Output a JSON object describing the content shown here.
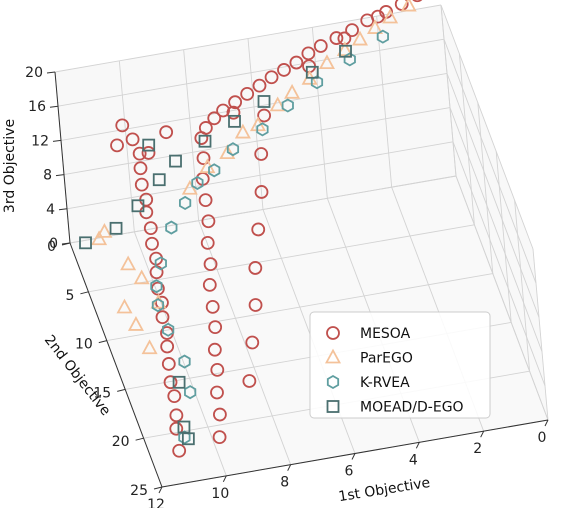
{
  "chart_data": {
    "type": "scatter",
    "title": "",
    "axes": {
      "x": {
        "label": "1st Objective",
        "ticks": [
          0,
          2,
          4,
          6,
          8,
          10,
          12
        ]
      },
      "y": {
        "label": "2nd Objective",
        "ticks": [
          0,
          5,
          10,
          15,
          20,
          25
        ]
      },
      "z": {
        "label": "3rd Objective",
        "ticks": [
          0,
          4,
          8,
          12,
          16,
          20
        ]
      }
    },
    "grid": true,
    "legend_position": "lower-right",
    "series": [
      {
        "name": "MESOA",
        "marker": "circle",
        "color": "#c0504d",
        "points": [
          [
            11.1,
            21.8,
            0
          ],
          [
            11.0,
            20.3,
            0.8
          ],
          [
            10.9,
            19.6,
            1.5
          ],
          [
            10.8,
            18.3,
            2.2
          ],
          [
            10.8,
            17.4,
            2.8
          ],
          [
            10.7,
            16.2,
            3.5
          ],
          [
            10.6,
            15.0,
            4.1
          ],
          [
            10.5,
            14.2,
            4.7
          ],
          [
            10.5,
            13.1,
            5.3
          ],
          [
            10.4,
            12.2,
            5.9
          ],
          [
            10.4,
            11.2,
            6.4
          ],
          [
            10.3,
            10.1,
            7.0
          ],
          [
            10.2,
            9.2,
            7.5
          ],
          [
            10.2,
            8.2,
            8.1
          ],
          [
            10.1,
            7.1,
            8.6
          ],
          [
            10.1,
            6.0,
            9.2
          ],
          [
            10.0,
            5.2,
            9.7
          ],
          [
            10.0,
            4.1,
            10.2
          ],
          [
            9.9,
            3.0,
            10.8
          ],
          [
            9.8,
            2.0,
            11.3
          ],
          [
            9.9,
            1.1,
            12.0
          ],
          [
            9.8,
            21.5,
            0.4
          ],
          [
            9.6,
            20.0,
            1.2
          ],
          [
            9.5,
            18.5,
            2.0
          ],
          [
            9.3,
            17.0,
            2.8
          ],
          [
            9.2,
            15.6,
            3.5
          ],
          [
            9.0,
            14.1,
            4.3
          ],
          [
            8.9,
            12.7,
            5.0
          ],
          [
            8.8,
            11.2,
            5.8
          ],
          [
            8.6,
            9.8,
            6.5
          ],
          [
            8.5,
            8.3,
            7.2
          ],
          [
            8.3,
            6.9,
            8.0
          ],
          [
            8.2,
            5.4,
            8.7
          ],
          [
            8.1,
            3.9,
            9.4
          ],
          [
            7.9,
            2.5,
            10.1
          ],
          [
            7.8,
            1.2,
            10.9
          ],
          [
            7.6,
            0.8,
            11.5
          ],
          [
            7.3,
            0.6,
            12.2
          ],
          [
            7.0,
            0.5,
            12.8
          ],
          [
            6.6,
            0.4,
            13.4
          ],
          [
            6.2,
            0.3,
            14.0
          ],
          [
            5.8,
            0.3,
            14.7
          ],
          [
            5.4,
            0.2,
            15.3
          ],
          [
            5.0,
            0.2,
            15.9
          ],
          [
            4.6,
            0.2,
            16.5
          ],
          [
            4.2,
            0.1,
            17.2
          ],
          [
            3.8,
            0.1,
            17.8
          ],
          [
            3.3,
            0.1,
            18.4
          ],
          [
            2.8,
            0.1,
            19.0
          ],
          [
            2.3,
            0.0,
            19.7
          ],
          [
            1.7,
            0.0,
            20.3
          ],
          [
            1.2,
            0.0,
            20.9
          ],
          [
            0.7,
            0.0,
            21.6
          ],
          [
            0.3,
            0.0,
            22.2
          ],
          [
            8.4,
            17.6,
            1.6
          ],
          [
            8.0,
            15.2,
            3.1
          ],
          [
            7.6,
            12.9,
            4.6
          ],
          [
            7.3,
            10.5,
            6.0
          ],
          [
            6.9,
            8.1,
            7.5
          ],
          [
            6.5,
            5.8,
            9.0
          ],
          [
            6.2,
            3.4,
            10.5
          ],
          [
            5.8,
            1.0,
            12.0
          ],
          [
            10.6,
            3.5,
            14.5
          ],
          [
            10.3,
            2.5,
            15.5
          ],
          [
            9.7,
            4.0,
            13.6
          ],
          [
            9.0,
            2.8,
            14.2
          ],
          [
            4.3,
            1.1,
            16.9
          ],
          [
            3.1,
            0.6,
            18.8
          ],
          [
            2.0,
            0.4,
            20.4
          ],
          [
            6.8,
            1.8,
            13.9
          ]
        ]
      },
      {
        "name": "ParEGO",
        "marker": "triangle",
        "color": "#f4c29a",
        "points": [
          [
            11.6,
            5.8,
            6.8
          ],
          [
            11.4,
            5.6,
            7.3
          ],
          [
            11.3,
            9.2,
            2.5
          ],
          [
            11.1,
            10.4,
            1.7
          ],
          [
            10.9,
            12.2,
            0.9
          ],
          [
            10.6,
            8.1,
            4.2
          ],
          [
            10.9,
            7.2,
            5.0
          ],
          [
            10.3,
            9.8,
            3.1
          ],
          [
            7.2,
            3.0,
            10.8
          ],
          [
            6.6,
            2.2,
            11.9
          ],
          [
            6.1,
            2.0,
            12.2
          ],
          [
            5.4,
            1.5,
            13.5
          ],
          [
            4.9,
            1.2,
            14.3
          ],
          [
            4.3,
            0.9,
            15.2
          ],
          [
            3.7,
            0.6,
            16.3
          ],
          [
            3.1,
            0.4,
            17.2
          ],
          [
            2.6,
            0.3,
            18.0
          ],
          [
            2.1,
            0.2,
            18.9
          ],
          [
            1.6,
            0.1,
            19.7
          ],
          [
            1.0,
            0.1,
            20.7
          ],
          [
            8.6,
            4.8,
            9.6
          ],
          [
            7.9,
            3.6,
            10.3
          ]
        ]
      },
      {
        "name": "K-RVEA",
        "marker": "hexagon",
        "color": "#5f9ea0",
        "points": [
          [
            10.0,
            8.4,
            5.9
          ],
          [
            10.3,
            9.6,
            4.8
          ],
          [
            10.4,
            10.7,
            3.9
          ],
          [
            10.3,
            12.4,
            2.9
          ],
          [
            10.1,
            14.9,
            1.9
          ],
          [
            10.2,
            17.1,
            0.9
          ],
          [
            10.8,
            20.6,
            0.0
          ],
          [
            9.4,
            6.3,
            7.3
          ],
          [
            8.8,
            5.0,
            8.3
          ],
          [
            7.7,
            3.6,
            9.8
          ],
          [
            7.0,
            2.8,
            10.9
          ],
          [
            6.0,
            2.3,
            12.0
          ],
          [
            5.1,
            1.6,
            13.4
          ],
          [
            4.1,
            1.1,
            14.9
          ],
          [
            3.0,
            0.7,
            16.4
          ],
          [
            1.9,
            0.4,
            18.0
          ],
          [
            8.3,
            4.2,
            9.4
          ]
        ]
      },
      {
        "name": "MOEAD/D-EGO",
        "marker": "square",
        "color": "#4a6f6f",
        "points": [
          [
            12.0,
            5.5,
            6.3
          ],
          [
            11.0,
            5.2,
            7.0
          ],
          [
            10.2,
            4.4,
            8.2
          ],
          [
            9.4,
            3.5,
            9.7
          ],
          [
            8.8,
            2.9,
            10.8
          ],
          [
            7.8,
            2.4,
            11.9
          ],
          [
            6.8,
            1.9,
            13.0
          ],
          [
            5.8,
            1.4,
            14.1
          ],
          [
            4.2,
            0.9,
            15.9
          ],
          [
            3.1,
            0.6,
            17.3
          ],
          [
            10.4,
            15.8,
            0.7
          ],
          [
            10.7,
            19.6,
            0.0
          ],
          [
            10.7,
            20.8,
            0.0
          ],
          [
            9.5,
            2.0,
            12.1
          ]
        ]
      }
    ]
  }
}
